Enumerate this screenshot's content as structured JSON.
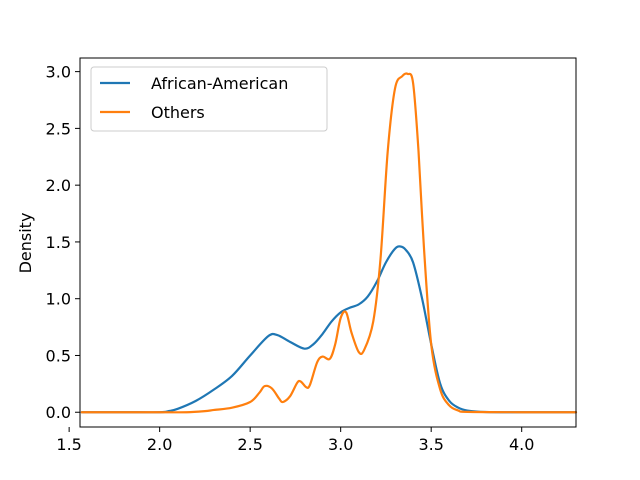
{
  "chart_data": {
    "type": "line",
    "title": "",
    "xlabel": "",
    "ylabel": "Density",
    "xlim": [
      1.56,
      4.3
    ],
    "ylim": [
      -0.13,
      3.12
    ],
    "grid": false,
    "legend_position": "top-left",
    "x_ticks": [
      {
        "value": 1.5,
        "label": "1.5"
      },
      {
        "value": 2.0,
        "label": "2.0"
      },
      {
        "value": 2.5,
        "label": "2.5"
      },
      {
        "value": 3.0,
        "label": "3.0"
      },
      {
        "value": 3.5,
        "label": "3.5"
      },
      {
        "value": 4.0,
        "label": "4.0"
      }
    ],
    "y_ticks": [
      {
        "value": 0.0,
        "label": "0.0"
      },
      {
        "value": 0.5,
        "label": "0.5"
      },
      {
        "value": 1.0,
        "label": "1.0"
      },
      {
        "value": 1.5,
        "label": "1.5"
      },
      {
        "value": 2.0,
        "label": "2.0"
      },
      {
        "value": 2.5,
        "label": "2.5"
      },
      {
        "value": 3.0,
        "label": "3.0"
      }
    ],
    "series": [
      {
        "name": "African-American",
        "color": "#1f77b4",
        "points": [
          [
            1.57,
            0.0
          ],
          [
            1.8,
            0.0
          ],
          [
            2.0,
            0.0
          ],
          [
            2.05,
            0.01
          ],
          [
            2.1,
            0.03
          ],
          [
            2.2,
            0.1
          ],
          [
            2.3,
            0.2
          ],
          [
            2.4,
            0.32
          ],
          [
            2.5,
            0.5
          ],
          [
            2.6,
            0.67
          ],
          [
            2.65,
            0.68
          ],
          [
            2.72,
            0.62
          ],
          [
            2.8,
            0.56
          ],
          [
            2.85,
            0.6
          ],
          [
            2.9,
            0.69
          ],
          [
            2.95,
            0.8
          ],
          [
            3.0,
            0.88
          ],
          [
            3.05,
            0.92
          ],
          [
            3.1,
            0.95
          ],
          [
            3.15,
            1.02
          ],
          [
            3.2,
            1.15
          ],
          [
            3.25,
            1.32
          ],
          [
            3.3,
            1.44
          ],
          [
            3.33,
            1.46
          ],
          [
            3.36,
            1.43
          ],
          [
            3.4,
            1.32
          ],
          [
            3.45,
            1.0
          ],
          [
            3.5,
            0.6
          ],
          [
            3.55,
            0.25
          ],
          [
            3.6,
            0.1
          ],
          [
            3.65,
            0.04
          ],
          [
            3.7,
            0.015
          ],
          [
            3.8,
            0.002
          ],
          [
            4.0,
            0.0
          ],
          [
            4.3,
            0.0
          ]
        ]
      },
      {
        "name": "Others",
        "color": "#ff7f0e",
        "points": [
          [
            1.57,
            0.0
          ],
          [
            2.0,
            0.0
          ],
          [
            2.15,
            0.0
          ],
          [
            2.25,
            0.01
          ],
          [
            2.3,
            0.02
          ],
          [
            2.4,
            0.04
          ],
          [
            2.5,
            0.09
          ],
          [
            2.55,
            0.17
          ],
          [
            2.58,
            0.23
          ],
          [
            2.62,
            0.21
          ],
          [
            2.66,
            0.12
          ],
          [
            2.68,
            0.09
          ],
          [
            2.72,
            0.14
          ],
          [
            2.76,
            0.26
          ],
          [
            2.78,
            0.27
          ],
          [
            2.81,
            0.22
          ],
          [
            2.83,
            0.24
          ],
          [
            2.87,
            0.44
          ],
          [
            2.9,
            0.49
          ],
          [
            2.94,
            0.47
          ],
          [
            2.97,
            0.6
          ],
          [
            3.0,
            0.83
          ],
          [
            3.03,
            0.88
          ],
          [
            3.06,
            0.7
          ],
          [
            3.1,
            0.53
          ],
          [
            3.13,
            0.55
          ],
          [
            3.18,
            0.8
          ],
          [
            3.22,
            1.35
          ],
          [
            3.26,
            2.3
          ],
          [
            3.3,
            2.85
          ],
          [
            3.34,
            2.96
          ],
          [
            3.37,
            2.98
          ],
          [
            3.4,
            2.9
          ],
          [
            3.43,
            2.3
          ],
          [
            3.46,
            1.45
          ],
          [
            3.5,
            0.6
          ],
          [
            3.55,
            0.2
          ],
          [
            3.6,
            0.06
          ],
          [
            3.65,
            0.015
          ],
          [
            3.7,
            0.003
          ],
          [
            4.0,
            0.0
          ],
          [
            4.3,
            0.0
          ]
        ]
      }
    ]
  }
}
